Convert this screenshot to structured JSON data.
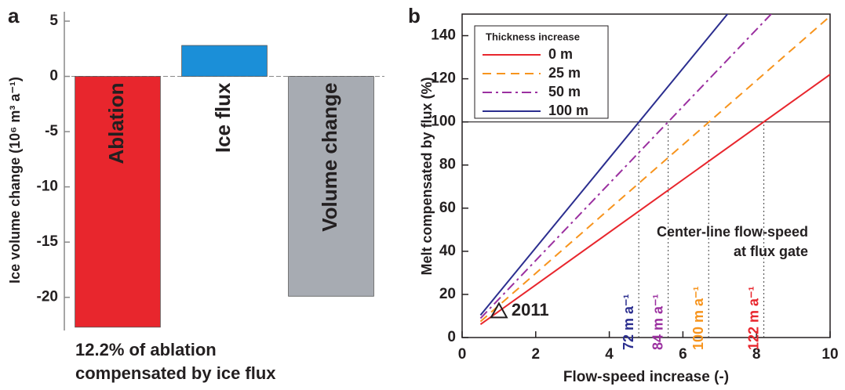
{
  "chart_data": [
    {
      "type": "bar",
      "panel_label": "a",
      "y_label": "Ice volume change (10⁶ m³ a⁻¹)",
      "categories": [
        "Ablation",
        "Ice flux",
        "Volume change"
      ],
      "values": [
        -22.7,
        2.8,
        -19.9
      ],
      "colors": [
        "#e8262d",
        "#1b8fd8",
        "#a7abb2"
      ],
      "ylim": [
        -23,
        5
      ],
      "yticks": [
        5,
        0,
        -5,
        -10,
        -15,
        -20
      ],
      "annotation": [
        "12.2% of ablation",
        "compensated by ice flux"
      ]
    },
    {
      "type": "line",
      "panel_label": "b",
      "x_label": "Flow-speed increase (-)",
      "y_label": "Melt compensated by flux (%)",
      "x": [
        0.5,
        10
      ],
      "series": [
        {
          "name": "0 m",
          "color": "#e8262d",
          "dash": "solid",
          "values": [
            6.1,
            122
          ]
        },
        {
          "name": "25 m",
          "color": "#f7941d",
          "dash": "dashed",
          "values": [
            7.45,
            149
          ]
        },
        {
          "name": "50 m",
          "color": "#9b30a0",
          "dash": "dashdot",
          "values": [
            8.93,
            178.6
          ]
        },
        {
          "name": "100 m",
          "color": "#2b2e8f",
          "dash": "solid",
          "values": [
            10.4,
            208
          ]
        }
      ],
      "legend_title": "Thickness increase",
      "legend": "upper left",
      "xlim": [
        0,
        10
      ],
      "xticks": [
        0,
        2,
        4,
        6,
        8,
        10
      ],
      "ylim": [
        0,
        150
      ],
      "yticks": [
        0,
        20,
        40,
        60,
        80,
        100,
        120,
        140
      ],
      "hline": 100,
      "markers": [
        {
          "x": 4.8,
          "label": "72 m a⁻¹",
          "color": "#2b2e8f"
        },
        {
          "x": 5.6,
          "label": "84 m a⁻¹",
          "color": "#9b30a0"
        },
        {
          "x": 6.7,
          "label": "100 m a⁻¹",
          "color": "#f7941d"
        },
        {
          "x": 8.2,
          "label": "122 m a⁻¹",
          "color": "#e8262d"
        }
      ],
      "point": {
        "x": 1,
        "y": 12.2,
        "label": "2011"
      },
      "annotation": [
        "Center-line flow-speed",
        "at flux gate"
      ]
    }
  ]
}
